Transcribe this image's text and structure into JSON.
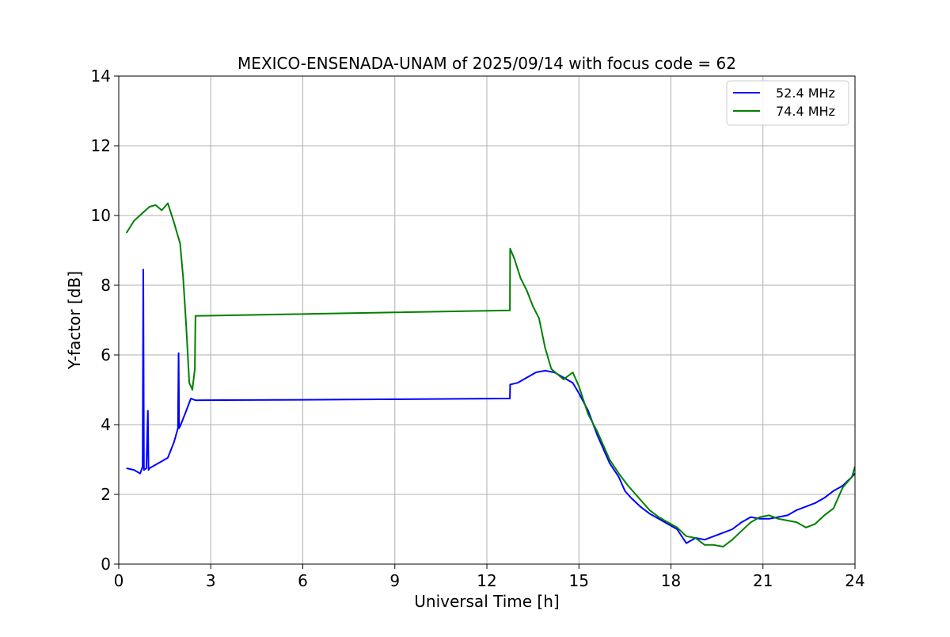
{
  "chart_data": {
    "type": "line",
    "title": "MEXICO-ENSENADA-UNAM of 2025/09/14 with focus code = 62",
    "xlabel": "Universal Time [h]",
    "ylabel": "Y-factor [dB]",
    "xlim": [
      0,
      24
    ],
    "ylim": [
      0,
      14
    ],
    "xticks": [
      0,
      3,
      6,
      9,
      12,
      15,
      18,
      21,
      24
    ],
    "yticks": [
      0,
      2,
      4,
      6,
      8,
      10,
      12,
      14
    ],
    "grid": true,
    "legend_position": "top-right",
    "series": [
      {
        "name": "52.4 MHz",
        "color": "#0000ff",
        "x": [
          0.25,
          0.5,
          0.7,
          0.78,
          0.8,
          0.82,
          0.9,
          0.95,
          0.97,
          1.0,
          1.2,
          1.4,
          1.6,
          1.8,
          1.93,
          1.95,
          1.97,
          2.0,
          2.2,
          2.35,
          2.5,
          5.0,
          9.0,
          12.75,
          12.76,
          13.0,
          13.3,
          13.6,
          13.9,
          14.2,
          14.5,
          14.8,
          15.0,
          15.3,
          15.6,
          16.0,
          16.3,
          16.5,
          16.7,
          17.0,
          17.3,
          17.6,
          17.9,
          18.2,
          18.5,
          18.8,
          19.1,
          19.4,
          19.7,
          20.0,
          20.3,
          20.6,
          20.9,
          21.2,
          21.5,
          21.8,
          22.1,
          22.4,
          22.7,
          23.0,
          23.3,
          23.6,
          23.9,
          24.0
        ],
        "y": [
          2.75,
          2.7,
          2.6,
          2.8,
          8.45,
          2.7,
          2.75,
          4.4,
          2.7,
          2.75,
          2.85,
          2.95,
          3.05,
          3.5,
          3.9,
          6.05,
          3.9,
          3.95,
          4.4,
          4.75,
          4.7,
          4.71,
          4.73,
          4.75,
          5.15,
          5.2,
          5.35,
          5.5,
          5.55,
          5.5,
          5.35,
          5.2,
          4.9,
          4.4,
          3.7,
          2.9,
          2.5,
          2.1,
          1.9,
          1.65,
          1.45,
          1.3,
          1.15,
          1.0,
          0.6,
          0.75,
          0.7,
          0.8,
          0.9,
          1.0,
          1.2,
          1.35,
          1.3,
          1.3,
          1.35,
          1.4,
          1.55,
          1.65,
          1.75,
          1.9,
          2.1,
          2.25,
          2.5,
          2.6
        ]
      },
      {
        "name": "74.4 MHz",
        "color": "#008000",
        "x": [
          0.25,
          0.5,
          0.75,
          1.0,
          1.2,
          1.4,
          1.6,
          1.8,
          1.9,
          2.0,
          2.1,
          2.2,
          2.3,
          2.4,
          2.48,
          2.5,
          5.0,
          9.0,
          12.75,
          12.76,
          12.9,
          13.1,
          13.3,
          13.5,
          13.7,
          13.9,
          14.1,
          14.3,
          14.5,
          14.8,
          15.0,
          15.3,
          15.6,
          16.0,
          16.3,
          16.6,
          17.0,
          17.3,
          17.6,
          17.9,
          18.2,
          18.5,
          18.8,
          19.1,
          19.4,
          19.7,
          20.0,
          20.3,
          20.6,
          20.9,
          21.2,
          21.5,
          21.8,
          22.1,
          22.4,
          22.7,
          23.0,
          23.3,
          23.6,
          23.9,
          24.0
        ],
        "y": [
          9.5,
          9.85,
          10.05,
          10.25,
          10.3,
          10.15,
          10.35,
          9.8,
          9.5,
          9.2,
          8.2,
          6.8,
          5.2,
          5.0,
          5.6,
          7.12,
          7.16,
          7.22,
          7.28,
          9.05,
          8.75,
          8.2,
          7.85,
          7.4,
          7.05,
          6.2,
          5.6,
          5.45,
          5.3,
          5.5,
          5.1,
          4.3,
          3.8,
          3.0,
          2.6,
          2.25,
          1.85,
          1.55,
          1.35,
          1.2,
          1.05,
          0.8,
          0.75,
          0.55,
          0.55,
          0.5,
          0.7,
          0.95,
          1.2,
          1.35,
          1.4,
          1.3,
          1.25,
          1.2,
          1.05,
          1.15,
          1.4,
          1.6,
          2.2,
          2.5,
          2.8
        ]
      }
    ]
  }
}
